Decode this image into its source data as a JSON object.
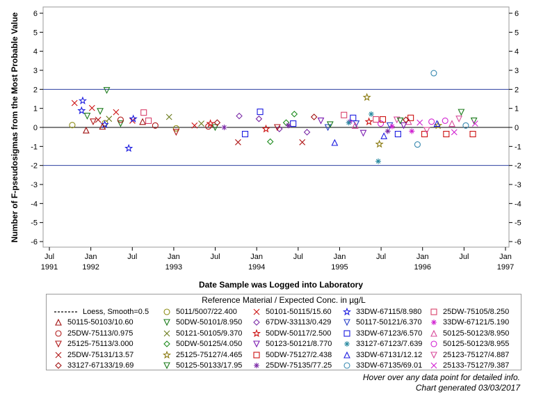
{
  "chart_data": {
    "type": "scatter",
    "title": "",
    "xlabel": "Date Sample was Logged into Laboratory",
    "ylabel": "Number of F-pseudosigmas from the Most Probable Value",
    "ylim": [
      -6,
      6
    ],
    "y_ticks": [
      "-6",
      "-5",
      "-4",
      "-3",
      "-2",
      "-1",
      "0",
      "1",
      "2",
      "3",
      "4",
      "5",
      "6"
    ],
    "x_ticks": [
      {
        "month": "Jul",
        "year": "1991"
      },
      {
        "month": "Jan",
        "year": "1992"
      },
      {
        "month": "Jul",
        "year": ""
      },
      {
        "month": "Jan",
        "year": "1993"
      },
      {
        "month": "Jul",
        "year": ""
      },
      {
        "month": "Jan",
        "year": "1994"
      },
      {
        "month": "Jul",
        "year": ""
      },
      {
        "month": "Jan",
        "year": "1995"
      },
      {
        "month": "Jul",
        "year": ""
      },
      {
        "month": "Jan",
        "year": "1996"
      },
      {
        "month": "Jul",
        "year": ""
      },
      {
        "month": "Jan",
        "year": "1997"
      }
    ],
    "reference_lines": [
      2,
      0,
      -2
    ],
    "reference_colors": {
      "limits": "#2b3fa0",
      "zero": "#000000"
    },
    "series": [
      {
        "name": "Loess, Smooth=0.5",
        "symbol": "dash",
        "color": "#000000",
        "points": []
      },
      {
        "name": "5011/5007/22.400",
        "symbol": "circle",
        "color": "#8c8c14",
        "points": [
          [
            "1991-10-10",
            0.12
          ],
          [
            "1992-03-02",
            0.22
          ],
          [
            "1993-01-10",
            -0.05
          ]
        ]
      },
      {
        "name": "50101-50115/15.60",
        "symbol": "x",
        "color": "#cc1111",
        "points": [
          [
            "1991-10-20",
            1.28
          ],
          [
            "1992-01-05",
            1.02
          ],
          [
            "1992-04-20",
            0.8
          ],
          [
            "1992-07-01",
            0.35
          ],
          [
            "1993-04-01",
            0.1
          ]
        ]
      },
      {
        "name": "33DW-67115/8.980",
        "symbol": "star",
        "color": "#1a1ae0",
        "points": [
          [
            "1991-11-25",
            1.4
          ],
          [
            "1991-11-20",
            0.88
          ],
          [
            "1992-06-15",
            -1.1
          ],
          [
            "1992-03-01",
            0.15
          ],
          [
            "1992-07-05",
            0.45
          ]
        ]
      },
      {
        "name": "25DW-75105/8.250",
        "symbol": "square",
        "color": "#d8406a",
        "points": [
          [
            "1992-08-20",
            0.78
          ],
          [
            "1992-09-10",
            0.35
          ],
          [
            "1995-01-20",
            0.65
          ],
          [
            "1995-06-10",
            0.42
          ]
        ]
      },
      {
        "name": "50115-50103/10.60",
        "symbol": "triangle",
        "color": "#a01010",
        "points": [
          [
            "1991-12-10",
            -0.15
          ],
          [
            "1992-02-20",
            0.05
          ],
          [
            "1992-08-15",
            0.3
          ]
        ]
      },
      {
        "name": "50DW-50101/8.950",
        "symbol": "triangle-down",
        "color": "#1a7a1a",
        "points": [
          [
            "1992-03-10",
            1.95
          ],
          [
            "1992-02-10",
            0.85
          ],
          [
            "1991-12-15",
            0.6
          ],
          [
            "1992-05-10",
            0.2
          ],
          [
            "1993-07-01",
            0.0
          ]
        ]
      },
      {
        "name": "67DW-33113/0.429",
        "symbol": "diamond",
        "color": "#7a2aa6",
        "points": [
          [
            "1993-10-15",
            0.6
          ],
          [
            "1994-01-10",
            0.45
          ],
          [
            "1994-04-10",
            -0.08
          ],
          [
            "1994-08-10",
            -0.25
          ]
        ]
      },
      {
        "name": "50117-50121/6.370",
        "symbol": "triangle-down-open",
        "color": "#2a40c8",
        "points": [
          [
            "1994-11-10",
            0.0
          ],
          [
            "1995-03-15",
            0.2
          ],
          [
            "1995-08-10",
            0.1
          ]
        ]
      },
      {
        "name": "33DW-67121/5.190",
        "symbol": "asterisk",
        "color": "#d020d0",
        "points": [
          [
            "1995-02-15",
            0.3
          ],
          [
            "1995-08-20",
            0.05
          ],
          [
            "1995-11-15",
            -0.2
          ]
        ]
      },
      {
        "name": "25DW-75113/0.975",
        "symbol": "circle",
        "color": "#b01818",
        "points": [
          [
            "1992-05-10",
            0.4
          ],
          [
            "1992-10-10",
            0.1
          ],
          [
            "1993-06-01",
            0.05
          ]
        ]
      },
      {
        "name": "50121-50105/9.370",
        "symbol": "x",
        "color": "#6a7a1a",
        "points": [
          [
            "1992-03-20",
            0.45
          ],
          [
            "1992-12-10",
            0.55
          ],
          [
            "1993-05-01",
            0.2
          ]
        ]
      },
      {
        "name": "50DW-50117/2.500",
        "symbol": "star",
        "color": "#cc1010",
        "points": [
          [
            "1993-06-10",
            0.2
          ],
          [
            "1994-02-10",
            -0.08
          ],
          [
            "1995-05-10",
            0.3
          ]
        ]
      },
      {
        "name": "33DW-67123/6.570",
        "symbol": "square",
        "color": "#1a1ae0",
        "points": [
          [
            "1993-11-10",
            -0.35
          ],
          [
            "1994-01-15",
            0.82
          ],
          [
            "1994-06-10",
            0.2
          ],
          [
            "1995-03-01",
            0.5
          ],
          [
            "1995-09-15",
            -0.35
          ]
        ]
      },
      {
        "name": "50125-50123/8.950",
        "symbol": "triangle",
        "color": "#d84a9a",
        "points": [
          [
            "1995-03-10",
            0.1
          ],
          [
            "1995-11-01",
            0.3
          ],
          [
            "1996-05-10",
            0.2
          ]
        ]
      },
      {
        "name": "25125-75113/3.000",
        "symbol": "triangle-down",
        "color": "#b01818",
        "points": [
          [
            "1992-01-10",
            0.3
          ],
          [
            "1993-01-10",
            -0.25
          ],
          [
            "1994-04-01",
            0.0
          ]
        ]
      },
      {
        "name": "50DW-50125/4.050",
        "symbol": "diamond",
        "color": "#1a8a1a",
        "points": [
          [
            "1994-03-01",
            -0.75
          ],
          [
            "1994-06-15",
            0.7
          ],
          [
            "1994-05-10",
            0.25
          ]
        ]
      },
      {
        "name": "50123-50121/8.770",
        "symbol": "triangle-down-open",
        "color": "#7a1ab0",
        "points": [
          [
            "1994-10-10",
            0.35
          ],
          [
            "1995-04-15",
            -0.3
          ],
          [
            "1995-10-10",
            0.1
          ]
        ]
      },
      {
        "name": "33127-67123/7.639",
        "symbol": "asterisk",
        "color": "#2a8aa0",
        "points": [
          [
            "1995-06-20",
            -1.78
          ],
          [
            "1995-02-10",
            0.25
          ],
          [
            "1995-05-20",
            0.7
          ]
        ]
      },
      {
        "name": "50125-50123/8.955",
        "symbol": "circle",
        "color": "#d020d0",
        "points": [
          [
            "1995-07-01",
            0.2
          ],
          [
            "1996-02-10",
            0.3
          ],
          [
            "1996-04-10",
            0.35
          ]
        ]
      },
      {
        "name": "25DW-75131/13.57",
        "symbol": "x",
        "color": "#b01818",
        "points": [
          [
            "1992-02-01",
            0.4
          ],
          [
            "1993-10-10",
            -0.78
          ],
          [
            "1994-07-20",
            -0.78
          ]
        ]
      },
      {
        "name": "25125-75127/4.465",
        "symbol": "star",
        "color": "#8a7a10",
        "points": [
          [
            "1995-05-01",
            1.58
          ],
          [
            "1995-06-25",
            -0.88
          ],
          [
            "1996-03-10",
            0.1
          ]
        ]
      },
      {
        "name": "50DW-75127/2.438",
        "symbol": "square",
        "color": "#cc1010",
        "points": [
          [
            "1995-07-10",
            0.42
          ],
          [
            "1995-11-10",
            0.5
          ],
          [
            "1996-01-10",
            -0.35
          ],
          [
            "1996-04-15",
            -0.35
          ],
          [
            "1996-08-10",
            -0.35
          ]
        ]
      },
      {
        "name": "33DW-67131/12.12",
        "symbol": "triangle",
        "color": "#1a1ae0",
        "points": [
          [
            "1994-12-10",
            -0.8
          ],
          [
            "1995-07-15",
            -0.45
          ],
          [
            "1996-03-05",
            0.2
          ]
        ]
      },
      {
        "name": "25123-75127/4.887",
        "symbol": "triangle-down-open",
        "color": "#d84a9a",
        "points": [
          [
            "1995-09-10",
            0.4
          ],
          [
            "1996-01-20",
            -0.15
          ],
          [
            "1996-06-10",
            0.45
          ]
        ]
      },
      {
        "name": "33127-67133/19.69",
        "symbol": "diamond",
        "color": "#a01010",
        "points": [
          [
            "1993-07-10",
            0.25
          ],
          [
            "1994-09-10",
            0.55
          ],
          [
            "1995-10-20",
            0.4
          ]
        ]
      },
      {
        "name": "50125-50133/17.95",
        "symbol": "triangle-down-open",
        "color": "#1a7a1a",
        "points": [
          [
            "1994-11-20",
            0.15
          ],
          [
            "1995-09-25",
            0.35
          ],
          [
            "1996-06-20",
            0.8
          ],
          [
            "1996-08-15",
            0.35
          ]
        ]
      },
      {
        "name": "25DW-75135/77.25",
        "symbol": "asterisk",
        "color": "#7a2aa6",
        "points": [
          [
            "1993-08-10",
            0.0
          ],
          [
            "1994-05-20",
            0.1
          ],
          [
            "1995-08-01",
            -0.2
          ]
        ]
      },
      {
        "name": "33DW-67135/69.01",
        "symbol": "circle",
        "color": "#3a8ab0",
        "points": [
          [
            "1996-02-20",
            2.85
          ],
          [
            "1995-12-10",
            -0.9
          ],
          [
            "1996-07-10",
            0.1
          ]
        ]
      },
      {
        "name": "25133-75127/9.387",
        "symbol": "x",
        "color": "#d020d0",
        "points": [
          [
            "1995-12-20",
            0.25
          ],
          [
            "1996-05-20",
            -0.25
          ],
          [
            "1996-08-20",
            0.2
          ]
        ]
      }
    ]
  },
  "legend": {
    "title": "Reference Material / Expected Conc. in µg/L"
  },
  "footnotes": {
    "hover": "Hover over any data point for detailed info.",
    "generated": "Chart generated 03/03/2017"
  }
}
